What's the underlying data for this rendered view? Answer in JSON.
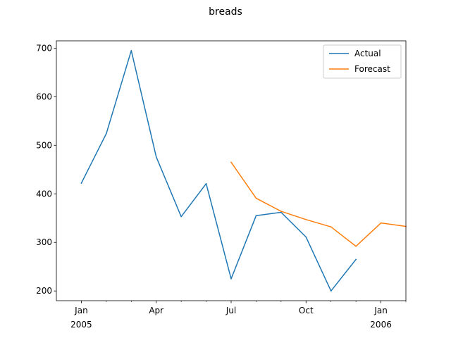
{
  "chart_data": {
    "type": "line",
    "title": "breads",
    "xlabel": "",
    "ylabel": "",
    "x": [
      "2005-01",
      "2005-02",
      "2005-03",
      "2005-04",
      "2005-05",
      "2005-06",
      "2005-07",
      "2005-08",
      "2005-09",
      "2005-10",
      "2005-11",
      "2005-12",
      "2006-01",
      "2006-02"
    ],
    "xlim": [
      "2004-12",
      "2006-02"
    ],
    "ylim": [
      180,
      715
    ],
    "y_ticks": [
      200,
      300,
      400,
      500,
      600,
      700
    ],
    "x_ticks": [
      {
        "x": "2005-01",
        "label": "Jan",
        "sublabel": "2005"
      },
      {
        "x": "2005-04",
        "label": "Apr",
        "sublabel": ""
      },
      {
        "x": "2005-07",
        "label": "Jul",
        "sublabel": ""
      },
      {
        "x": "2005-10",
        "label": "Oct",
        "sublabel": ""
      },
      {
        "x": "2006-01",
        "label": "Jan",
        "sublabel": "2006"
      }
    ],
    "x_minor_ticks": [
      "2005-02",
      "2005-03",
      "2005-05",
      "2005-06",
      "2005-08",
      "2005-09",
      "2005-11",
      "2005-12",
      "2006-02"
    ],
    "legend_position": "top-right",
    "grid": false,
    "series": [
      {
        "name": "Actual",
        "color": "#1f77b4",
        "points": [
          {
            "x": "2005-01",
            "y": 422
          },
          {
            "x": "2005-02",
            "y": 524
          },
          {
            "x": "2005-03",
            "y": 695
          },
          {
            "x": "2005-04",
            "y": 476
          },
          {
            "x": "2005-05",
            "y": 353
          },
          {
            "x": "2005-06",
            "y": 421
          },
          {
            "x": "2005-07",
            "y": 225
          },
          {
            "x": "2005-08",
            "y": 355
          },
          {
            "x": "2005-09",
            "y": 362
          },
          {
            "x": "2005-10",
            "y": 311
          },
          {
            "x": "2005-11",
            "y": 200
          },
          {
            "x": "2005-12",
            "y": 265
          }
        ]
      },
      {
        "name": "Forecast",
        "color": "#ff7f0e",
        "points": [
          {
            "x": "2005-07",
            "y": 465
          },
          {
            "x": "2005-08",
            "y": 391
          },
          {
            "x": "2005-09",
            "y": 364
          },
          {
            "x": "2005-10",
            "y": 347
          },
          {
            "x": "2005-11",
            "y": 332
          },
          {
            "x": "2005-12",
            "y": 292
          },
          {
            "x": "2006-01",
            "y": 340
          },
          {
            "x": "2006-02",
            "y": 333
          }
        ]
      }
    ]
  }
}
